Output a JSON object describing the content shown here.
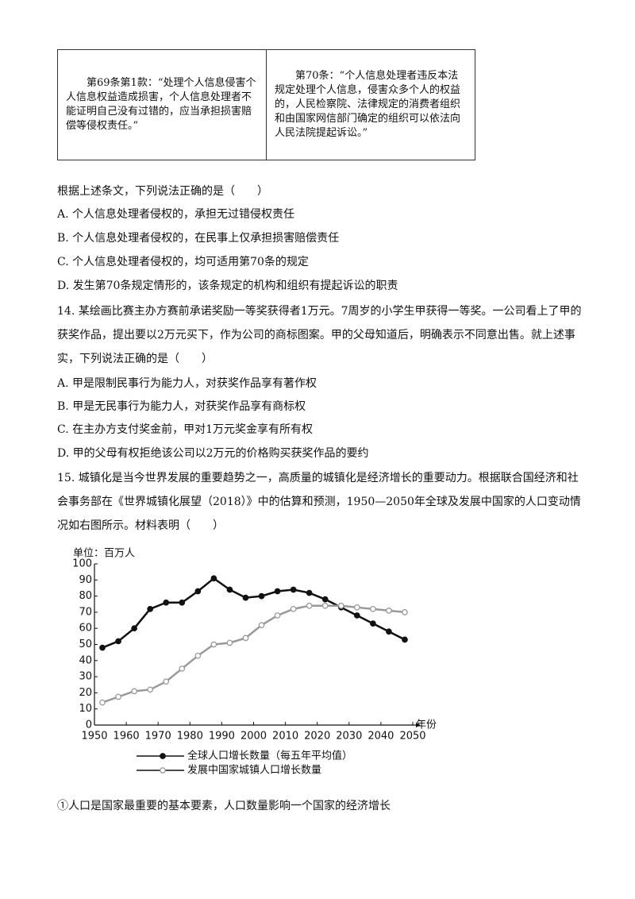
{
  "table": {
    "rows": [
      [
        "第69条第1款：“处理个人信息侵害个人信息权益造成损害，个人信息处理者不能证明自己没有过错的，应当承担损害赔偿等侵权责任。”",
        "第70条：“个人信息处理者违反本法规定处理个人信息，侵害众多个人的权益的，人民检察院、法律规定的消费者组织和由国家网信部门确定的组织可以依法向人民法院提起诉讼。”"
      ]
    ]
  },
  "questions": [
    {
      "stem": "根据上述条文，下列说法正确的是（　　）",
      "options": [
        "A. 个人信息处理者侵权的，承担无过错侵权责任",
        "B. 个人信息处理者侵权的，在民事上仅承担损害赔偿责任",
        "C. 个人信息处理者侵权的，均可适用第70条的规定",
        "D. 发生第70条规定情形的，该条规定的机构和组织有提起诉讼的职责"
      ]
    },
    {
      "stem": "14. 某绘画比赛主办方赛前承诺奖励一等奖获得者1万元。7周岁的小学生甲获得一等奖。一公司看上了甲的获奖作品，提出要以2万元买下，作为公司的商标图案。甲的父母知道后，明确表示不同意出售。就上述事实，下列说法正确的是（　　）",
      "options": [
        "A. 甲是限制民事行为能力人，对获奖作品享有著作权",
        "B. 甲是无民事行为能力人，对获奖作品享有商标权",
        "C. 在主办方支付奖金前，甲对1万元奖金享有所有权",
        "D. 甲的父母有权拒绝该公司以2万元的价格购买获奖作品的要约"
      ]
    },
    {
      "stem": "15. 城镇化是当今世界发展的重要趋势之一，高质量的城镇化是经济增长的重要动力。根据联合国经济和社会事务部在《世界城镇化展望（2018）》中的估算和预测，1950—2050年全球及发展中国家的人口变动情况如右图所示。材料表明（　　）",
      "options": [
        "①人口是国家最重要的基本要素，人口数量影响一个国家的经济增长"
      ]
    }
  ],
  "chart_data": {
    "type": "line",
    "y_label": "单位：百万人",
    "x_label": "年份",
    "x": [
      1952.5,
      1957.5,
      1962.5,
      1967.5,
      1972.5,
      1977.5,
      1982.5,
      1987.5,
      1992.5,
      1997.5,
      2002.5,
      2007.5,
      2012.5,
      2017.5,
      2022.5,
      2027.5,
      2032.5,
      2037.5,
      2042.5,
      2047.5
    ],
    "series": [
      {
        "name": "全球人口增长数量（每五年平均值）",
        "color": "#111111",
        "marker": "filled",
        "values": [
          48,
          52,
          60,
          72,
          76,
          76,
          83,
          91,
          84,
          79,
          80,
          83,
          84,
          82,
          78,
          73,
          68,
          63,
          58,
          53
        ]
      },
      {
        "name": "发展中国家城镇人口增长数量",
        "color": "#999999",
        "marker": "hollow",
        "values": [
          14,
          17.5,
          21,
          22,
          27,
          35,
          43,
          50,
          51,
          54,
          62,
          68,
          72,
          74,
          74,
          74,
          73,
          72,
          71,
          70
        ]
      }
    ],
    "xlim": [
      1950,
      2050
    ],
    "xticks": [
      1950,
      1960,
      1970,
      1980,
      1990,
      2000,
      2010,
      2020,
      2030,
      2040,
      2050
    ],
    "ylim": [
      0,
      100
    ],
    "yticks": [
      0,
      10,
      20,
      30,
      40,
      50,
      60,
      70,
      80,
      90,
      100
    ],
    "grid": false
  }
}
